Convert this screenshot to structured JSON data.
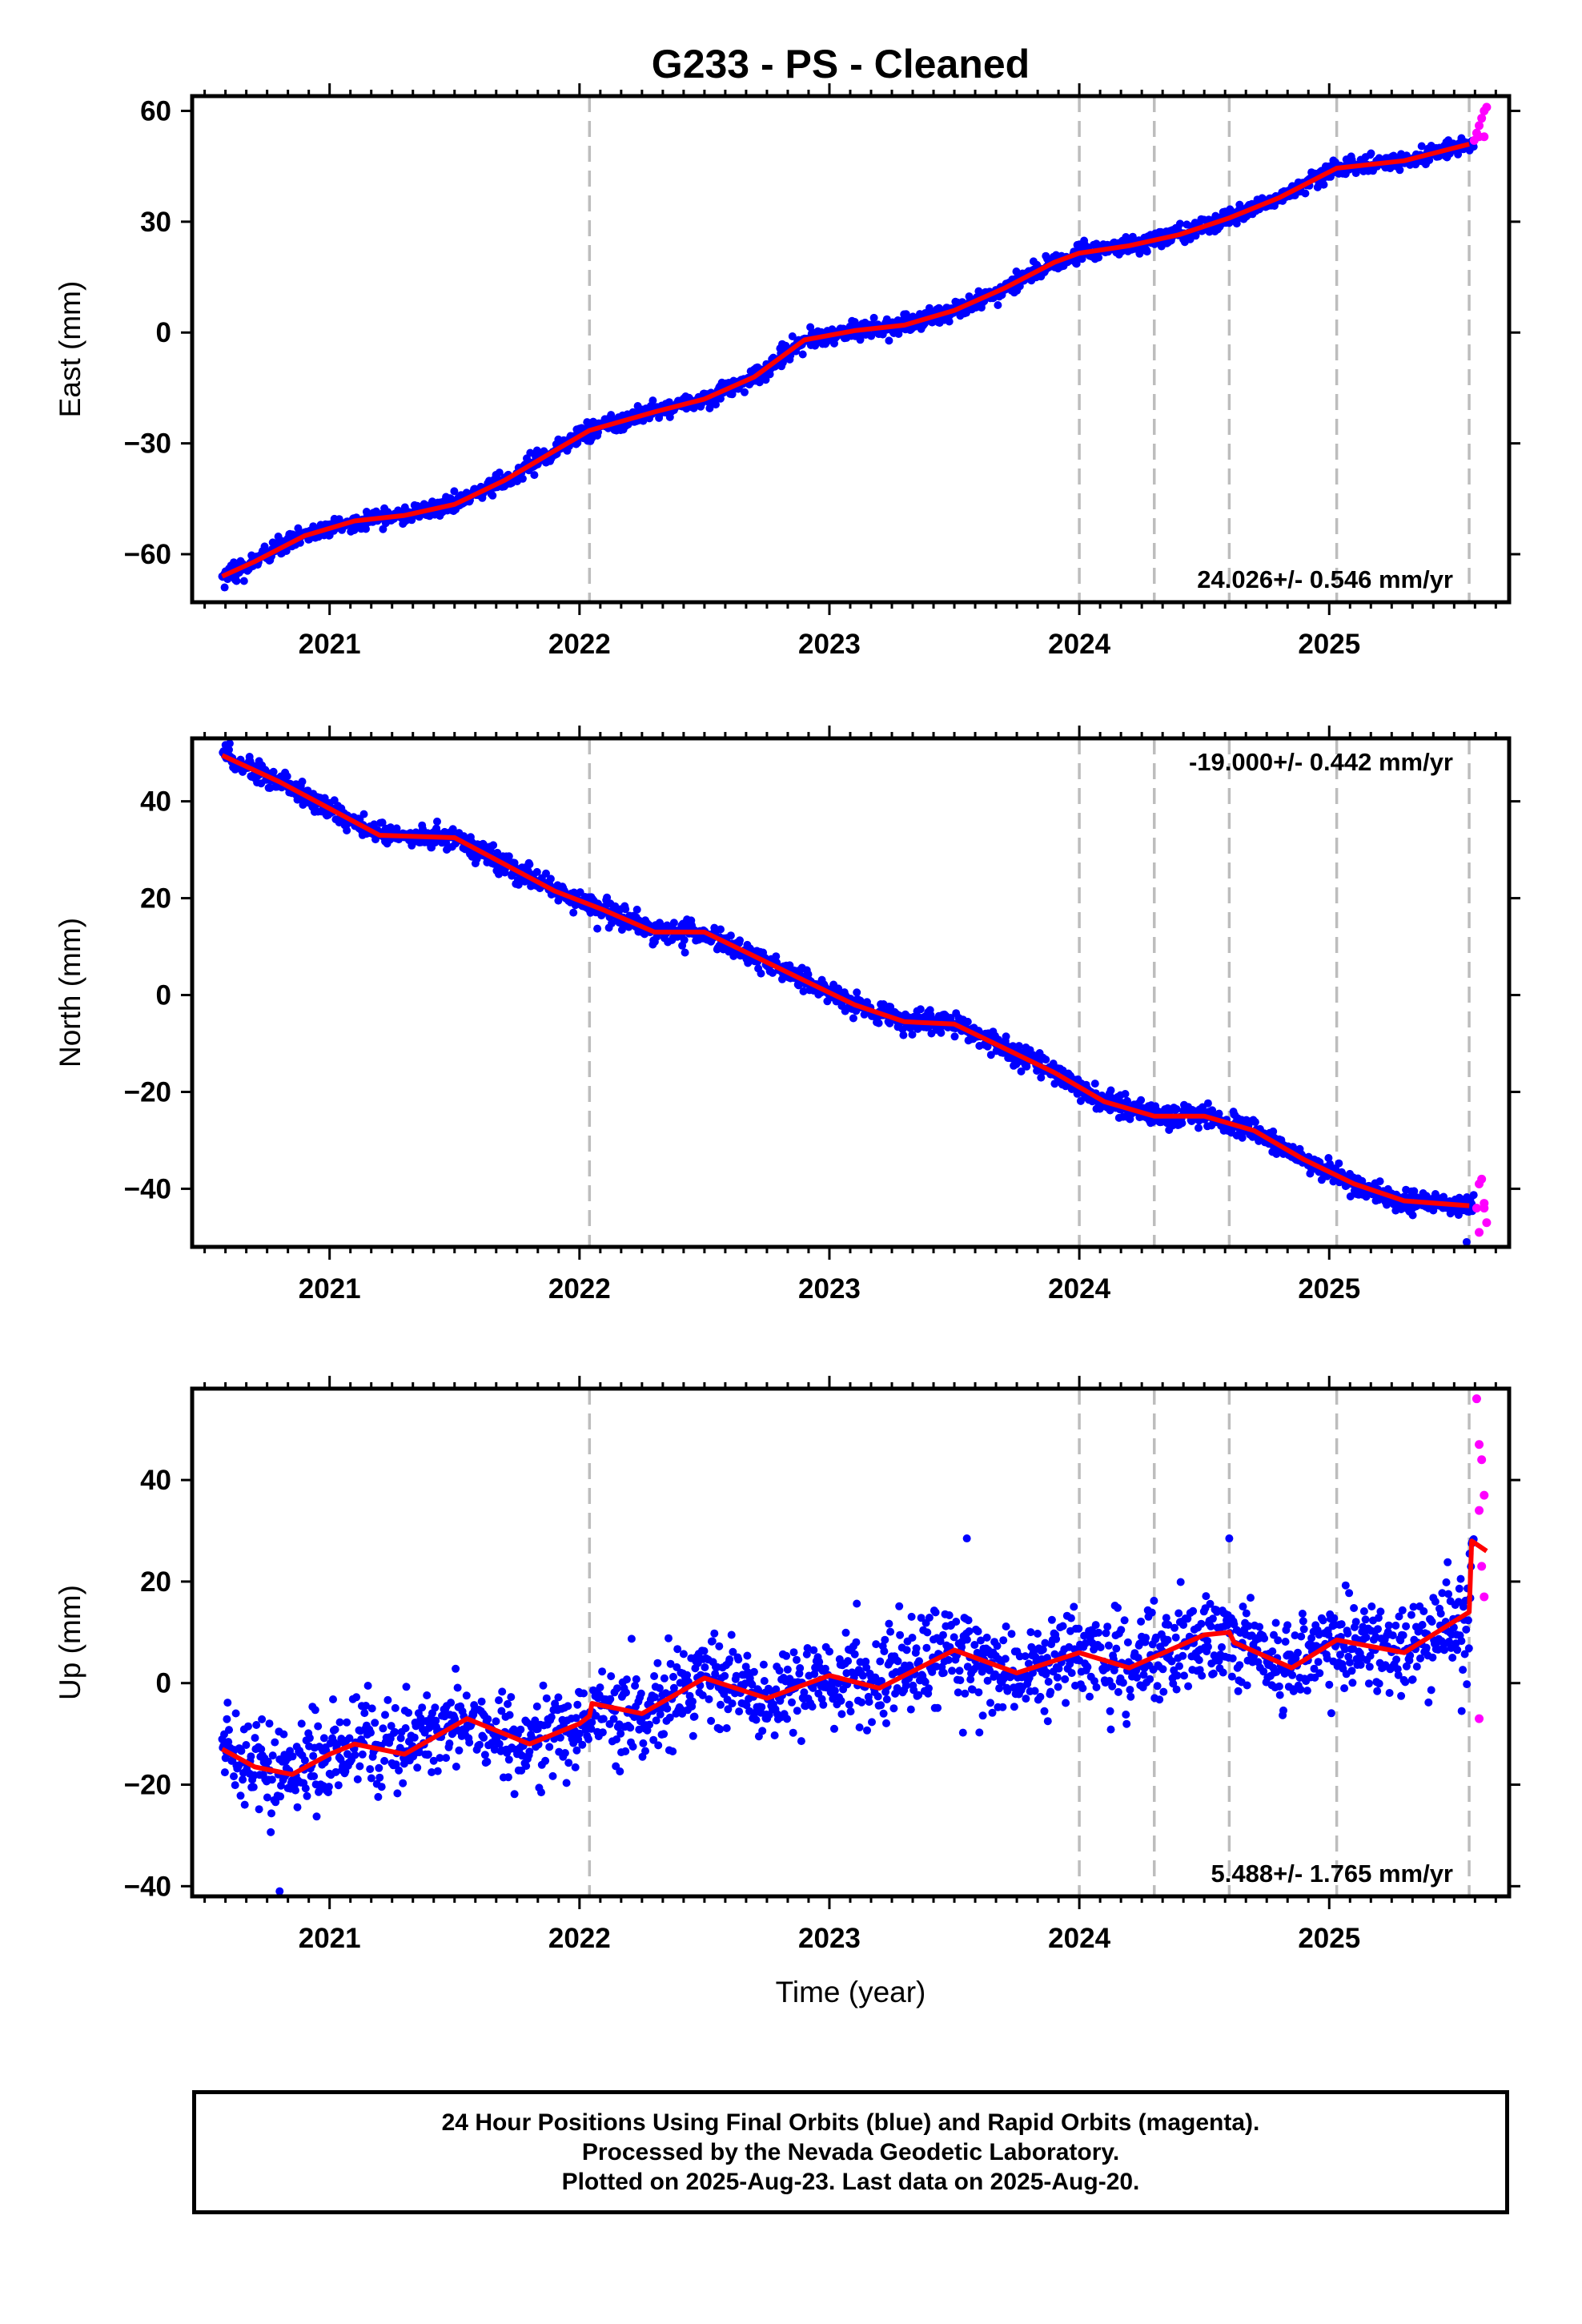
{
  "page": {
    "title": "G233  - PS - Cleaned",
    "footer": [
      "24 Hour Positions Using Final Orbits (blue) and Rapid Orbits (magenta).",
      "Processed by the Nevada Geodetic Laboratory.",
      "Plotted on 2025-Aug-23. Last data on 2025-Aug-20."
    ]
  },
  "colors": {
    "final_orbits": "#0000ff",
    "rapid_orbits": "#ff00ff",
    "model_fit": "#ff0000",
    "event_lines": "#bdbdbd"
  },
  "chart_data": [
    {
      "type": "scatter",
      "title": "G233  - PS - Cleaned",
      "xlabel": "",
      "ylabel": "East (mm)",
      "xlim": [
        2020.45,
        2025.72
      ],
      "ylim": [
        -73,
        64
      ],
      "x_ticks": [
        2021,
        2022,
        2023,
        2024,
        2025
      ],
      "y_ticks": [
        60,
        30,
        0,
        -30,
        -60
      ],
      "rate_label": "24.026+/- 0.546 mm/yr",
      "rate_position": "bottom-right",
      "event_lines": [
        2022.04,
        2024.0,
        2024.3,
        2024.6,
        2025.03,
        2025.56
      ],
      "steps": [
        {
          "x": 2022.04,
          "dy": 2.5
        }
      ],
      "seasonal": {
        "amplitude": 1.8,
        "phase": 0.3
      },
      "model_fit": {
        "x": [
          2020.57,
          2020.7,
          2020.9,
          2021.1,
          2021.3,
          2021.5,
          2021.7,
          2021.9,
          2022.04,
          2022.3,
          2022.5,
          2022.7,
          2022.9,
          2023.1,
          2023.3,
          2023.5,
          2023.7,
          2023.9,
          2024.0,
          2024.2,
          2024.4,
          2024.6,
          2024.8,
          2025.03,
          2025.3,
          2025.56
        ],
        "y": [
          -66,
          -62,
          -55,
          -51,
          -49.5,
          -46.5,
          -40,
          -32,
          -26.5,
          -21.5,
          -18,
          -12,
          -2,
          0.5,
          2,
          6,
          12,
          19,
          21.5,
          23.5,
          26.5,
          31,
          36.5,
          44.5,
          46.5,
          51
        ]
      },
      "final_orbits": {
        "x_start": 2020.57,
        "x_end": 2025.58,
        "scatter_sd": 1.2,
        "outliers": [
          [
            2020.58,
            -69
          ]
        ]
      },
      "rapid_orbits": {
        "x": [
          2025.58,
          2025.59,
          2025.6,
          2025.61,
          2025.62,
          2025.63,
          2025.6,
          2025.62
        ],
        "y": [
          52,
          54,
          56,
          58,
          60,
          61,
          53,
          53
        ]
      }
    },
    {
      "type": "scatter",
      "xlabel": "",
      "ylabel": "North (mm)",
      "xlim": [
        2020.45,
        2025.72
      ],
      "ylim": [
        -52,
        53
      ],
      "x_ticks": [
        2021,
        2022,
        2023,
        2024,
        2025
      ],
      "y_ticks": [
        40,
        20,
        0,
        -20,
        -40
      ],
      "rate_label": "-19.000+/- 0.442 mm/yr",
      "rate_position": "top-right",
      "event_lines": [
        2022.04,
        2024.0,
        2024.3,
        2024.6,
        2025.03,
        2025.56
      ],
      "steps": [],
      "seasonal": {
        "amplitude": 1.5,
        "phase": 0.2
      },
      "model_fit": {
        "x": [
          2020.57,
          2020.8,
          2021.0,
          2021.2,
          2021.5,
          2021.7,
          2021.9,
          2022.1,
          2022.3,
          2022.5,
          2022.7,
          2022.9,
          2023.1,
          2023.3,
          2023.5,
          2023.7,
          2023.9,
          2024.1,
          2024.3,
          2024.5,
          2024.7,
          2024.9,
          2025.1,
          2025.3,
          2025.56
        ],
        "y": [
          49.5,
          44,
          38.5,
          33,
          32.5,
          27,
          21.5,
          17.5,
          13,
          13,
          8,
          3,
          -2,
          -5.5,
          -6,
          -11,
          -16,
          -22,
          -25,
          -25,
          -28,
          -34,
          -39,
          -42.5,
          -43.5
        ]
      },
      "final_orbits": {
        "x_start": 2020.57,
        "x_end": 2025.58,
        "scatter_sd": 1.1,
        "outliers": [
          [
            2025.55,
            -51
          ]
        ]
      },
      "rapid_orbits": {
        "x": [
          2025.59,
          2025.6,
          2025.61,
          2025.62,
          2025.63,
          2025.6,
          2025.62
        ],
        "y": [
          -44,
          -39,
          -38,
          -43,
          -47,
          -49,
          -44
        ]
      }
    },
    {
      "type": "scatter",
      "xlabel": "Time (year)",
      "ylabel": "Up (mm)",
      "xlim": [
        2020.45,
        2025.72
      ],
      "ylim": [
        -42,
        58
      ],
      "x_ticks": [
        2021,
        2022,
        2023,
        2024,
        2025
      ],
      "y_ticks": [
        40,
        20,
        0,
        -20,
        -40
      ],
      "rate_label": "5.488+/- 1.765 mm/yr",
      "rate_position": "bottom-right",
      "event_lines": [
        2022.04,
        2024.0,
        2024.3,
        2024.6,
        2025.03,
        2025.56
      ],
      "steps": [],
      "seasonal": {
        "amplitude": 4,
        "phase": 0.1
      },
      "model_fit": {
        "x": [
          2020.57,
          2020.7,
          2020.85,
          2021.0,
          2021.1,
          2021.3,
          2021.55,
          2021.8,
          2022.0,
          2022.04,
          2022.05,
          2022.25,
          2022.5,
          2022.75,
          2023.0,
          2023.2,
          2023.5,
          2023.75,
          2024.0,
          2024.2,
          2024.5,
          2024.6,
          2024.62,
          2024.85,
          2025.03,
          2025.3,
          2025.56,
          2025.57,
          2025.63
        ],
        "y": [
          -13,
          -16.5,
          -18,
          -14,
          -12,
          -14,
          -7,
          -12,
          -8,
          -6.5,
          -4,
          -6,
          1,
          -3,
          1.5,
          -1,
          6.5,
          2,
          6,
          3,
          9.5,
          10,
          8,
          3,
          8.5,
          6,
          14,
          28,
          26
        ]
      },
      "final_orbits": {
        "x_start": 2020.57,
        "x_end": 2025.58,
        "scatter_sd": 4.5,
        "outliers": [
          [
            2020.8,
            -41
          ],
          [
            2023.55,
            28.5
          ],
          [
            2024.6,
            28.5
          ],
          [
            2025.53,
            -5.5
          ]
        ]
      },
      "rapid_orbits": {
        "x": [
          2025.59,
          2025.6,
          2025.61,
          2025.62,
          2025.6,
          2025.61,
          2025.62,
          2025.6
        ],
        "y": [
          56,
          47,
          44,
          37,
          34,
          23,
          17,
          -7
        ]
      }
    }
  ]
}
